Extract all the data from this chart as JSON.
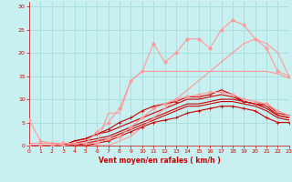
{
  "xlabel": "Vent moyen/en rafales ( km/h )",
  "xlim": [
    0,
    23
  ],
  "ylim": [
    0,
    31
  ],
  "xticks": [
    0,
    1,
    2,
    3,
    4,
    5,
    6,
    7,
    8,
    9,
    10,
    11,
    12,
    13,
    14,
    15,
    16,
    17,
    18,
    19,
    20,
    21,
    22,
    23
  ],
  "yticks": [
    0,
    5,
    10,
    15,
    20,
    25,
    30
  ],
  "bg_color": "#c8f0f0",
  "grid_color": "#a0d8d8",
  "series": [
    {
      "x": [
        0,
        1,
        2,
        3,
        4,
        5,
        6,
        7,
        8,
        9,
        10,
        11,
        12,
        13,
        14,
        15,
        16,
        17,
        18,
        19,
        20,
        21,
        22,
        23
      ],
      "y": [
        0,
        0,
        0,
        0,
        0,
        0,
        0.5,
        1,
        2,
        3,
        4,
        5,
        5.5,
        6,
        7,
        7.5,
        8,
        8.5,
        8.5,
        8,
        7.5,
        6,
        5,
        5
      ],
      "color": "#cc0000",
      "lw": 0.8,
      "marker": "+",
      "ms": 3.0,
      "alpha": 1.0
    },
    {
      "x": [
        0,
        1,
        2,
        3,
        4,
        5,
        6,
        7,
        8,
        9,
        10,
        11,
        12,
        13,
        14,
        15,
        16,
        17,
        18,
        19,
        20,
        21,
        22,
        23
      ],
      "y": [
        0,
        0,
        0,
        0,
        0,
        0.5,
        1,
        1.5,
        2.5,
        3.5,
        4.5,
        5.5,
        6.5,
        7.5,
        8.5,
        8.5,
        9,
        9.5,
        9.5,
        9,
        8.5,
        7.5,
        6,
        5.5
      ],
      "color": "#cc0000",
      "lw": 0.8,
      "marker": null,
      "ms": 0,
      "alpha": 1.0
    },
    {
      "x": [
        0,
        1,
        2,
        3,
        4,
        5,
        6,
        7,
        8,
        9,
        10,
        11,
        12,
        13,
        14,
        15,
        16,
        17,
        18,
        19,
        20,
        21,
        22,
        23
      ],
      "y": [
        0,
        0,
        0,
        0,
        0.5,
        1,
        1.5,
        2,
        3,
        4,
        5,
        6,
        7,
        8,
        9,
        9,
        9.5,
        10,
        10,
        9.5,
        9,
        8,
        6.5,
        6
      ],
      "color": "#cc0000",
      "lw": 0.8,
      "marker": null,
      "ms": 0,
      "alpha": 1.0
    },
    {
      "x": [
        0,
        1,
        2,
        3,
        4,
        5,
        6,
        7,
        8,
        9,
        10,
        11,
        12,
        13,
        14,
        15,
        16,
        17,
        18,
        19,
        20,
        21,
        22,
        23
      ],
      "y": [
        0,
        0,
        0,
        0,
        1,
        1.5,
        2.5,
        3,
        4,
        5,
        6,
        7,
        8,
        9,
        10,
        10,
        10.5,
        11,
        10.5,
        9.5,
        9,
        8.5,
        6.5,
        6
      ],
      "color": "#cc0000",
      "lw": 0.8,
      "marker": null,
      "ms": 0,
      "alpha": 1.0
    },
    {
      "x": [
        0,
        1,
        2,
        3,
        4,
        5,
        6,
        7,
        8,
        9,
        10,
        11,
        12,
        13,
        14,
        15,
        16,
        17,
        18,
        19,
        20,
        21,
        22,
        23
      ],
      "y": [
        0,
        0,
        0,
        0,
        1,
        1.5,
        2.5,
        3.5,
        5,
        6,
        7.5,
        8.5,
        9,
        9.5,
        10.5,
        10.5,
        11,
        12,
        11,
        9.5,
        9,
        9,
        7,
        6.5
      ],
      "color": "#cc0000",
      "lw": 0.8,
      "marker": "+",
      "ms": 3.0,
      "alpha": 1.0
    },
    {
      "x": [
        0,
        1,
        2,
        3,
        4,
        5,
        6,
        7,
        8,
        9,
        10,
        11,
        12,
        13,
        14,
        15,
        16,
        17,
        18,
        19,
        20,
        21,
        22,
        23
      ],
      "y": [
        0.5,
        0.5,
        0.5,
        0.5,
        0.5,
        0.5,
        0.5,
        7,
        7,
        14,
        16,
        16,
        16,
        16,
        16,
        16,
        16,
        16,
        16,
        16,
        16,
        16,
        15.5,
        14.5
      ],
      "color": "#ff9999",
      "lw": 0.8,
      "marker": null,
      "ms": 0,
      "alpha": 1.0
    },
    {
      "x": [
        0,
        1,
        2,
        3,
        4,
        5,
        6,
        7,
        8,
        9,
        10,
        11,
        12,
        13,
        14,
        15,
        16,
        17,
        18,
        19,
        20,
        21,
        22,
        23
      ],
      "y": [
        0,
        0,
        0,
        0,
        0,
        0,
        0,
        0,
        1,
        2,
        4,
        6,
        8,
        10,
        12,
        14,
        16,
        18,
        20,
        22,
        23,
        22,
        20,
        15
      ],
      "color": "#ff9999",
      "lw": 0.8,
      "marker": null,
      "ms": 0,
      "alpha": 1.0
    },
    {
      "x": [
        0,
        1,
        2,
        3,
        4,
        5,
        6,
        7,
        8,
        9,
        10,
        11,
        12,
        13,
        14,
        15,
        16,
        17,
        18,
        19,
        20,
        21,
        22,
        23
      ],
      "y": [
        0,
        0,
        0,
        0.5,
        0.5,
        0.5,
        3,
        5,
        8,
        14,
        16,
        22,
        18,
        20,
        23,
        23,
        21,
        25,
        27,
        26,
        23,
        21,
        16,
        15
      ],
      "color": "#ff9999",
      "lw": 0.8,
      "marker": "D",
      "ms": 2.0,
      "alpha": 1.0
    },
    {
      "x": [
        0,
        1,
        2,
        3,
        4,
        5,
        6,
        7,
        8,
        9,
        10,
        11,
        12,
        13,
        14,
        15,
        16,
        17,
        18,
        19,
        20,
        21,
        22,
        23
      ],
      "y": [
        5.5,
        1,
        0.5,
        0,
        0.5,
        0.5,
        0.5,
        1.5,
        2,
        4,
        6,
        8,
        9,
        10,
        10.5,
        11,
        11.5,
        11.5,
        11,
        10,
        9.5,
        9,
        7.5,
        6.5
      ],
      "color": "#ff9999",
      "lw": 0.8,
      "marker": "D",
      "ms": 2.0,
      "alpha": 1.0
    }
  ]
}
